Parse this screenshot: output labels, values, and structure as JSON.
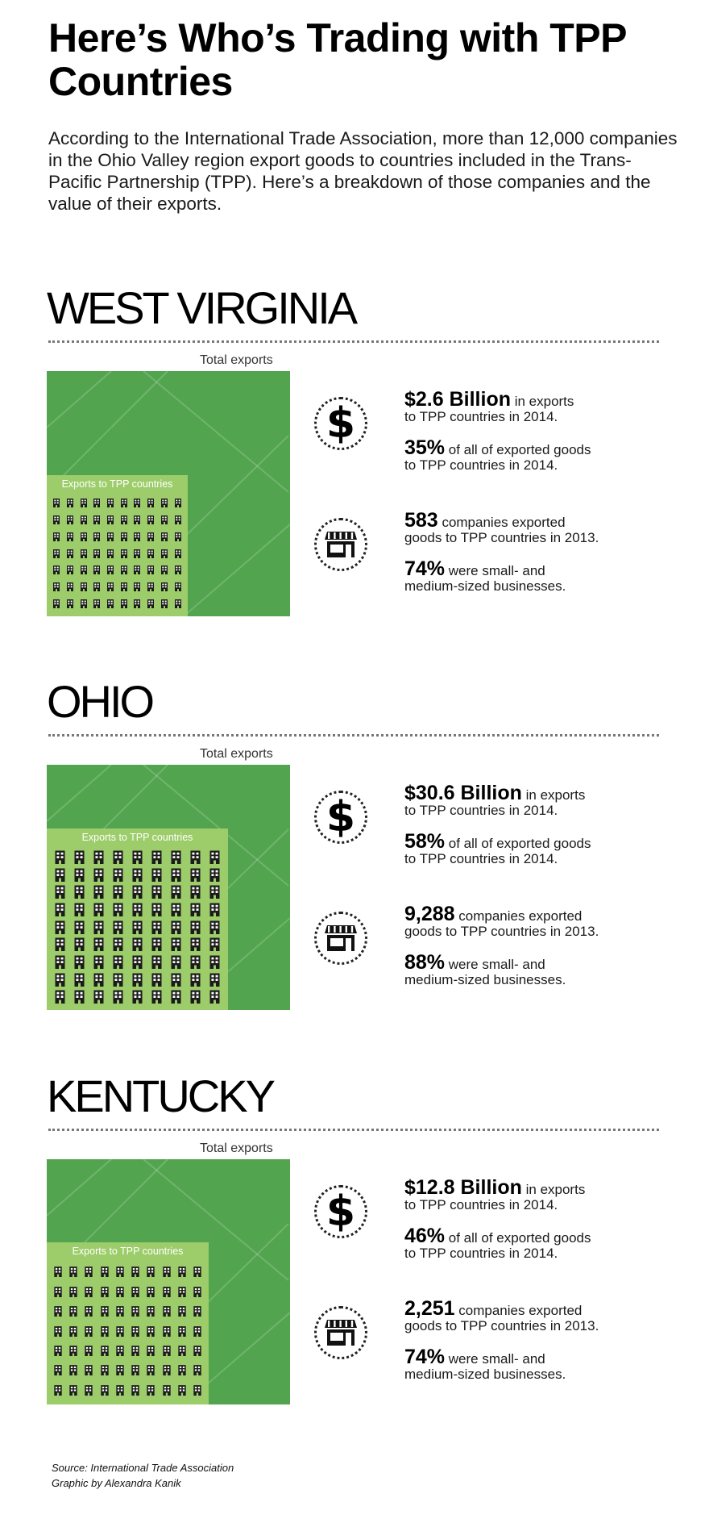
{
  "header": {
    "title": "Here’s Who’s Trading with TPP Countries",
    "intro": "According to the International Trade Association, more than 12,000 companies in the Ohio Valley region export goods to countries included in the Trans-Pacific Partnership (TPP). Here’s a breakdown of those companies and the value of their exports."
  },
  "labels": {
    "total_exports": "Total exports",
    "tpp_exports": "Exports to TPP countries"
  },
  "colors": {
    "total_green": "#52a44f",
    "tpp_green": "#9ccd6a",
    "icon_dark": "#1b1b1b"
  },
  "icons": {
    "dollar": "dollar-icon",
    "storefront": "storefront-icon",
    "building": "office-building-icon"
  },
  "states": [
    {
      "name": "WEST VIRGINIA",
      "tpp_share_pct": 35,
      "building_icon_count": 70,
      "exports_value": "$2.6 Billion",
      "exports_rest": " in exports",
      "exports_line2": "to TPP countries in 2014.",
      "share_value": "35%",
      "share_rest": " of all of exported goods",
      "share_line2": "to TPP countries in 2014.",
      "companies_value": "583",
      "companies_rest": " companies exported",
      "companies_line2": "goods to TPP countries in 2013.",
      "sme_value": "74%",
      "sme_rest": " were small- and",
      "sme_line2": "medium-sized businesses."
    },
    {
      "name": "OHIO",
      "tpp_share_pct": 58,
      "building_icon_count": 81,
      "exports_value": "$30.6 Billion",
      "exports_rest": " in exports",
      "exports_line2": "to TPP countries in 2014.",
      "share_value": "58%",
      "share_rest": " of all of exported goods",
      "share_line2": "to TPP countries in 2014.",
      "companies_value": "9,288",
      "companies_rest": " companies exported",
      "companies_line2": "goods to TPP countries in 2013.",
      "sme_value": "88%",
      "sme_rest": " were small- and",
      "sme_line2": "medium-sized businesses."
    },
    {
      "name": "KENTUCKY",
      "tpp_share_pct": 46,
      "building_icon_count": 70,
      "exports_value": "$12.8 Billion",
      "exports_rest": " in exports",
      "exports_line2": "to TPP countries in 2014.",
      "share_value": "46%",
      "share_rest": " of all of exported goods",
      "share_line2": "to TPP countries in 2014.",
      "companies_value": "2,251",
      "companies_rest": " companies exported",
      "companies_line2": "goods to TPP countries in 2013.",
      "sme_value": "74%",
      "sme_rest": " were small- and",
      "sme_line2": "medium-sized businesses."
    }
  ],
  "footer": {
    "source": "Source: International Trade Association",
    "credit": "Graphic by Alexandra Kanik"
  }
}
